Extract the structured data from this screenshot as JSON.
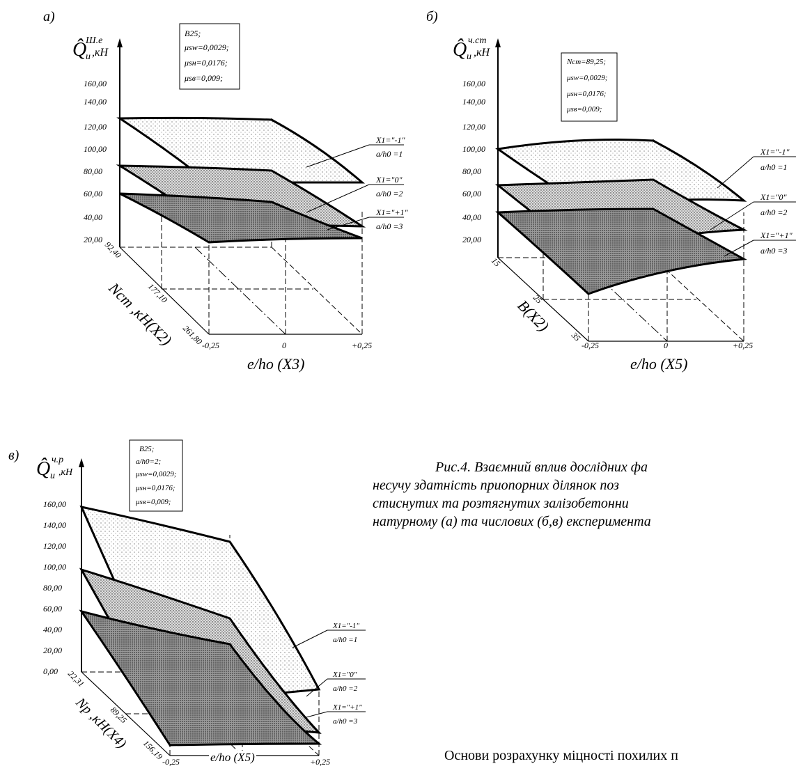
{
  "panels": [
    {
      "letter": "а)",
      "y_symbol": "Q̂",
      "y_sup": "Ш.е",
      "y_sub": "u",
      "y_unit": ",кН",
      "y_ticks": [
        "160,00",
        "140,00",
        "120,00",
        "100,00",
        "80,00",
        "60,00",
        "40,00",
        "20,00"
      ],
      "info": [
        "B25;",
        "μsw=0,0029;",
        "μsн=0,0176;",
        "μsв=0,009;"
      ],
      "depth_ticks": [
        "92,40",
        "177,10",
        "261,80"
      ],
      "depth_label": "Nст ,кН(X2)",
      "x_ticks": [
        "-0,25",
        "0",
        "+0,25"
      ],
      "x_label": "e/ho (X3)",
      "surfaces": [
        {
          "x1": "X1=\"-1\"",
          "ratio": "a/h0 =1"
        },
        {
          "x1": "X1=\"0\"",
          "ratio": "a/h0 =2"
        },
        {
          "x1": "X1=\"+1\"",
          "ratio": "a/h0 =3"
        }
      ]
    },
    {
      "letter": "б)",
      "y_symbol": "Q̂",
      "y_sup": "ч.ст",
      "y_sub": "u",
      "y_unit": ",кН",
      "y_ticks": [
        "160,00",
        "140,00",
        "120,00",
        "100,00",
        "80,00",
        "60,00",
        "40,00",
        "20,00"
      ],
      "info": [
        "Nст=89,25;",
        "μsw=0,0029;",
        "μsн=0,0176;",
        "μsв=0,009;"
      ],
      "depth_ticks": [
        "15",
        "25",
        "35"
      ],
      "depth_label": "B(X2)",
      "x_ticks": [
        "-0,25",
        "0",
        "+0,25"
      ],
      "x_label": "e/ho (X5)",
      "surfaces": [
        {
          "x1": "X1=\"-1\"",
          "ratio": "a/h0 =1"
        },
        {
          "x1": "X1=\"0\"",
          "ratio": "a/h0 =2"
        },
        {
          "x1": "X1=\"+1\"",
          "ratio": "a/h0 =3"
        }
      ]
    },
    {
      "letter": "в)",
      "y_symbol": "Q̂",
      "y_sup": "ч.р",
      "y_sub": "u",
      "y_unit": ",кН",
      "y_ticks": [
        "160,00",
        "140,00",
        "120,00",
        "100,00",
        "80,00",
        "60,00",
        "40,00",
        "20,00",
        "0,00"
      ],
      "info": [
        "B25;",
        "a/h0=2;",
        "μsw=0,0029;",
        "μsн=0,0176;",
        "μsв=0,009;"
      ],
      "depth_ticks": [
        "22,31",
        "89,25",
        "156,19"
      ],
      "depth_label": "Np ,кН(X4)",
      "x_ticks": [
        "-0,25",
        "0",
        "+0,25"
      ],
      "x_label": "e/ho (X5)",
      "surfaces": [
        {
          "x1": "X1=\"-1\"",
          "ratio": "a/h0 =1"
        },
        {
          "x1": "X1=\"0\"",
          "ratio": "a/h0 =2"
        },
        {
          "x1": "X1=\"+1\"",
          "ratio": "a/h0 =3"
        }
      ]
    }
  ],
  "caption": {
    "line1": "Рис.4. Взаємний вплив дослідних фа",
    "line2": "несучу здатність приопорних ділянок поз",
    "line3": "стиснутих та розтягнутих залізобетонни",
    "line4": "натурному (а) та числових (б,в) експеримента"
  },
  "bottom_text": "Основи розрахунку міцності похилих п"
}
